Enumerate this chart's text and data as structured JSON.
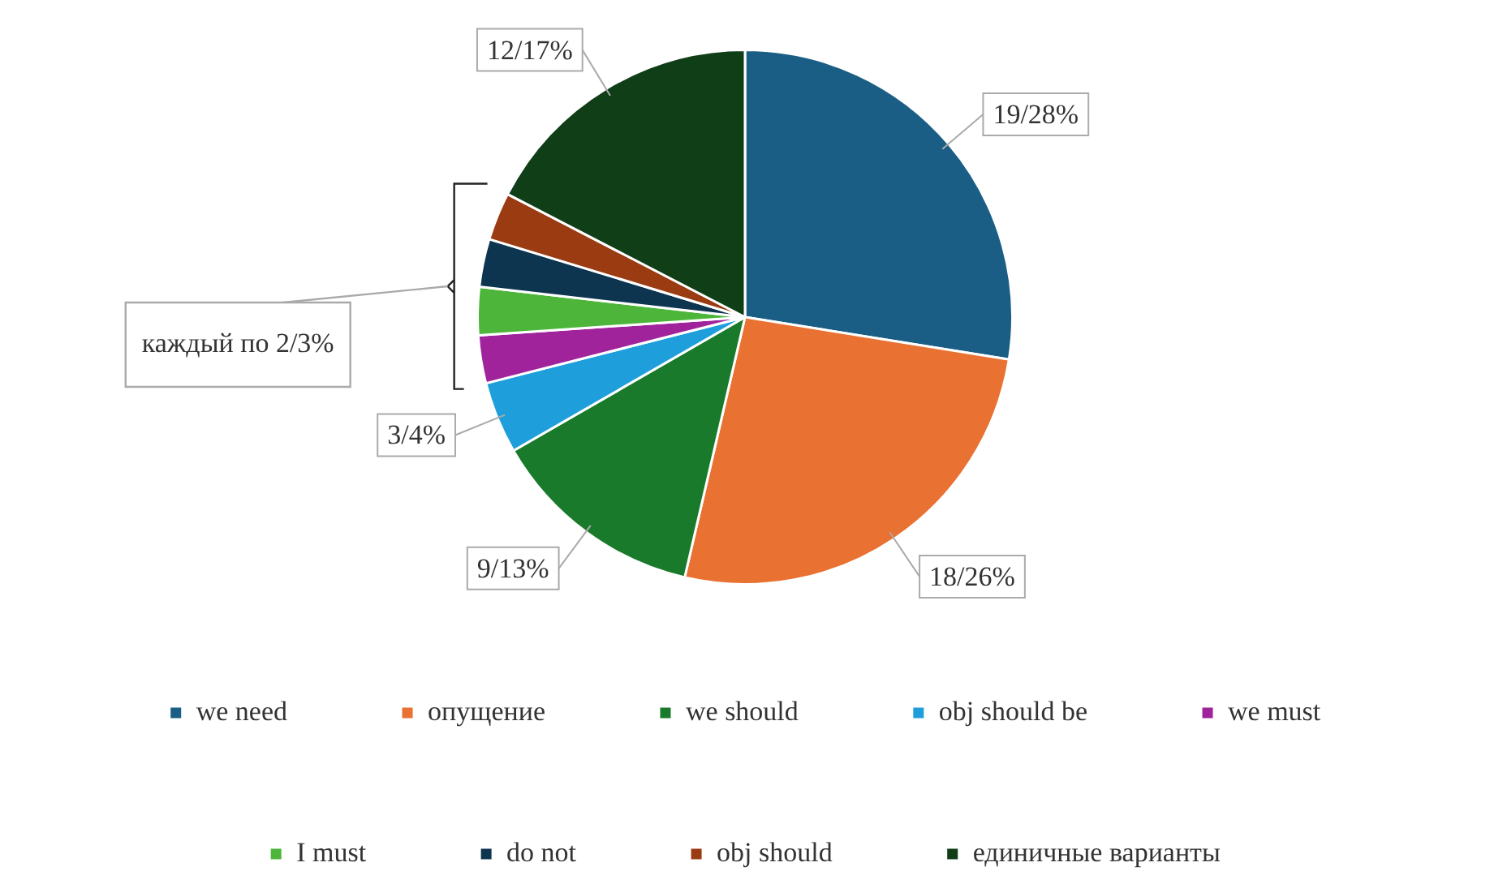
{
  "chart_data": {
    "type": "pie",
    "categories": [
      "we need",
      "опущение",
      "we should",
      "obj should be",
      "we must",
      "I must",
      "do not",
      "obj should",
      "единичные варианты"
    ],
    "values": [
      19,
      18,
      9,
      3,
      2,
      2,
      2,
      2,
      12
    ],
    "colors": [
      "#1b5e85",
      "#e97132",
      "#1a7a2c",
      "#1e9fdc",
      "#a0239c",
      "#4db53a",
      "#0e3550",
      "#9a3b12",
      "#0f3e17"
    ],
    "value_labels": [
      "19/28%",
      "18/26%",
      "9/13%",
      "3/4%",
      null,
      null,
      null,
      null,
      "12/17%"
    ],
    "annotations": [
      "каждый по 2/3%"
    ],
    "legend": "bottom"
  }
}
